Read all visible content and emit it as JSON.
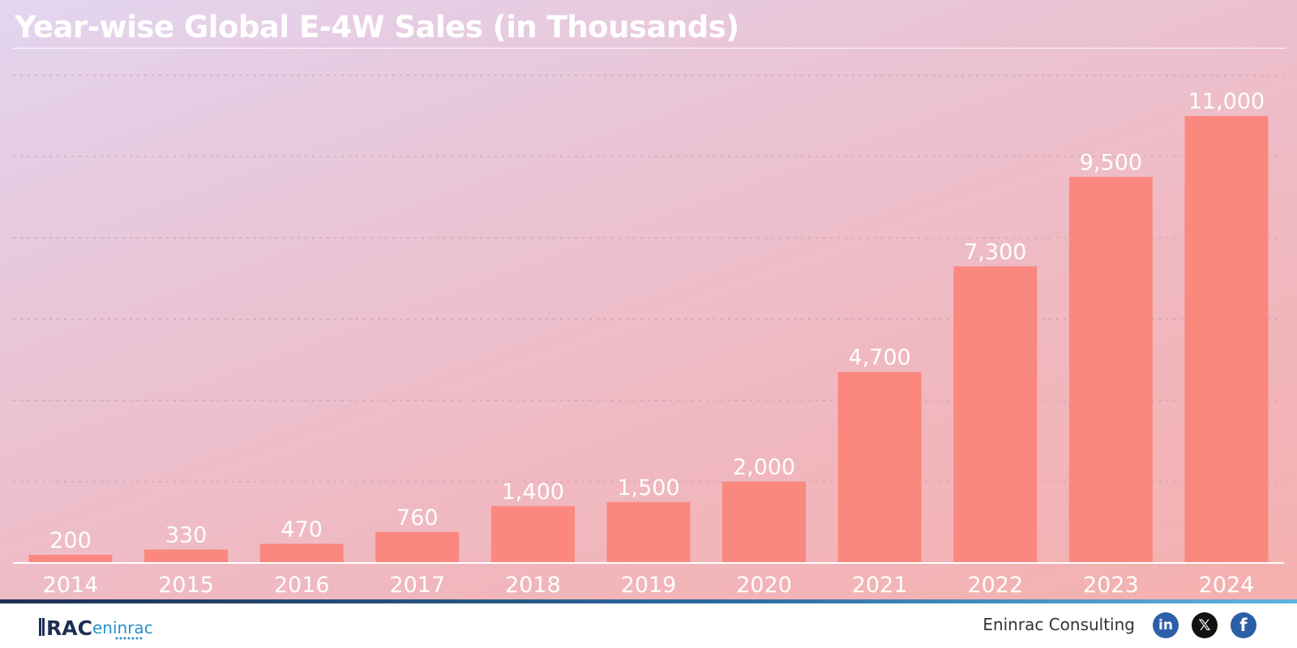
{
  "chart_data": {
    "type": "bar",
    "title": "Year-wise Global E-4W Sales (in Thousands)",
    "categories": [
      "2014",
      "2015",
      "2016",
      "2017",
      "2018",
      "2019",
      "2020",
      "2021",
      "2022",
      "2023",
      "2024"
    ],
    "values": [
      200,
      330,
      470,
      760,
      1400,
      1500,
      2000,
      4700,
      7300,
      9500,
      11000
    ],
    "value_labels": [
      "200",
      "330",
      "470",
      "760",
      "1,400",
      "1,500",
      "2,000",
      "4,700",
      "7,300",
      "9,500",
      "11,000"
    ],
    "xlabel": "",
    "ylabel": "",
    "ylim": [
      0,
      12000
    ],
    "grid": true,
    "legend": "none",
    "colors": {
      "bar": "#fa887e",
      "text": "#ffffff",
      "grid": "#c9a3ad"
    }
  },
  "footer": {
    "brand": "Eninrac Consulting",
    "logo_text": "RAC",
    "logo_text_2": "eninrac",
    "social": [
      {
        "icon": "linkedin-icon",
        "glyph": "in"
      },
      {
        "icon": "x-icon",
        "glyph": "𝕏"
      },
      {
        "icon": "facebook-icon",
        "glyph": "f"
      }
    ]
  }
}
